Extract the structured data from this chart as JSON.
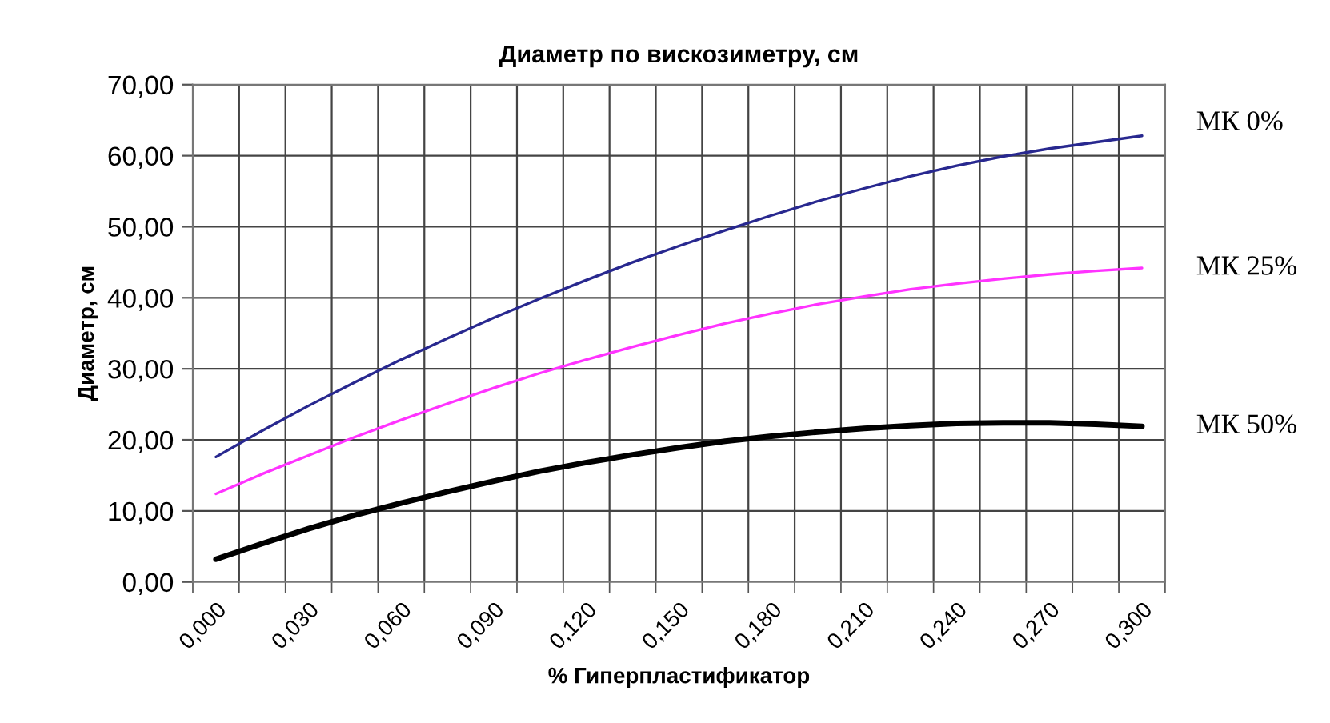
{
  "chart_data": {
    "type": "line",
    "title": "Диаметр по вискозиметру, см",
    "xlabel": "% Гиперпластификатор",
    "ylabel": "Диаметр, см",
    "categories": [
      "0,000",
      null,
      "0,030",
      null,
      "0,060",
      null,
      "0,090",
      null,
      "0,120",
      null,
      "0,150",
      null,
      "0,180",
      null,
      "0,210",
      null,
      "0,240",
      null,
      "0,270",
      null,
      "0,300"
    ],
    "series": [
      {
        "name": "МК 0%",
        "color": "#28288f",
        "values": [
          17.6,
          21.3,
          24.8,
          28.1,
          31.3,
          34.3,
          37.2,
          39.9,
          42.5,
          45.0,
          47.3,
          49.5,
          51.6,
          53.6,
          55.4,
          57.1,
          58.6,
          59.9,
          61.0,
          61.9,
          62.8
        ]
      },
      {
        "name": "МК 25%",
        "color": "#ff33ff",
        "values": [
          12.4,
          15.2,
          17.8,
          20.4,
          22.8,
          25.1,
          27.3,
          29.4,
          31.3,
          33.1,
          34.8,
          36.4,
          37.8,
          39.1,
          40.2,
          41.2,
          42.0,
          42.7,
          43.3,
          43.8,
          44.2
        ]
      },
      {
        "name": "МК 50%",
        "color": "#000000",
        "values": [
          3.2,
          5.4,
          7.5,
          9.4,
          11.1,
          12.7,
          14.2,
          15.6,
          16.8,
          17.9,
          18.9,
          19.8,
          20.5,
          21.1,
          21.6,
          22.0,
          22.3,
          22.4,
          22.4,
          22.2,
          21.9
        ]
      }
    ],
    "ylim": [
      0,
      70
    ],
    "yticks": [
      {
        "value": 0,
        "label": "0,00"
      },
      {
        "value": 10,
        "label": "10,00"
      },
      {
        "value": 20,
        "label": "20,00"
      },
      {
        "value": 30,
        "label": "30,00"
      },
      {
        "value": 40,
        "label": "40,00"
      },
      {
        "value": 50,
        "label": "50,00"
      },
      {
        "value": 60,
        "label": "60,00"
      },
      {
        "value": 70,
        "label": "70,00"
      }
    ],
    "grid": true,
    "marker": "none",
    "line_style": "solid"
  }
}
